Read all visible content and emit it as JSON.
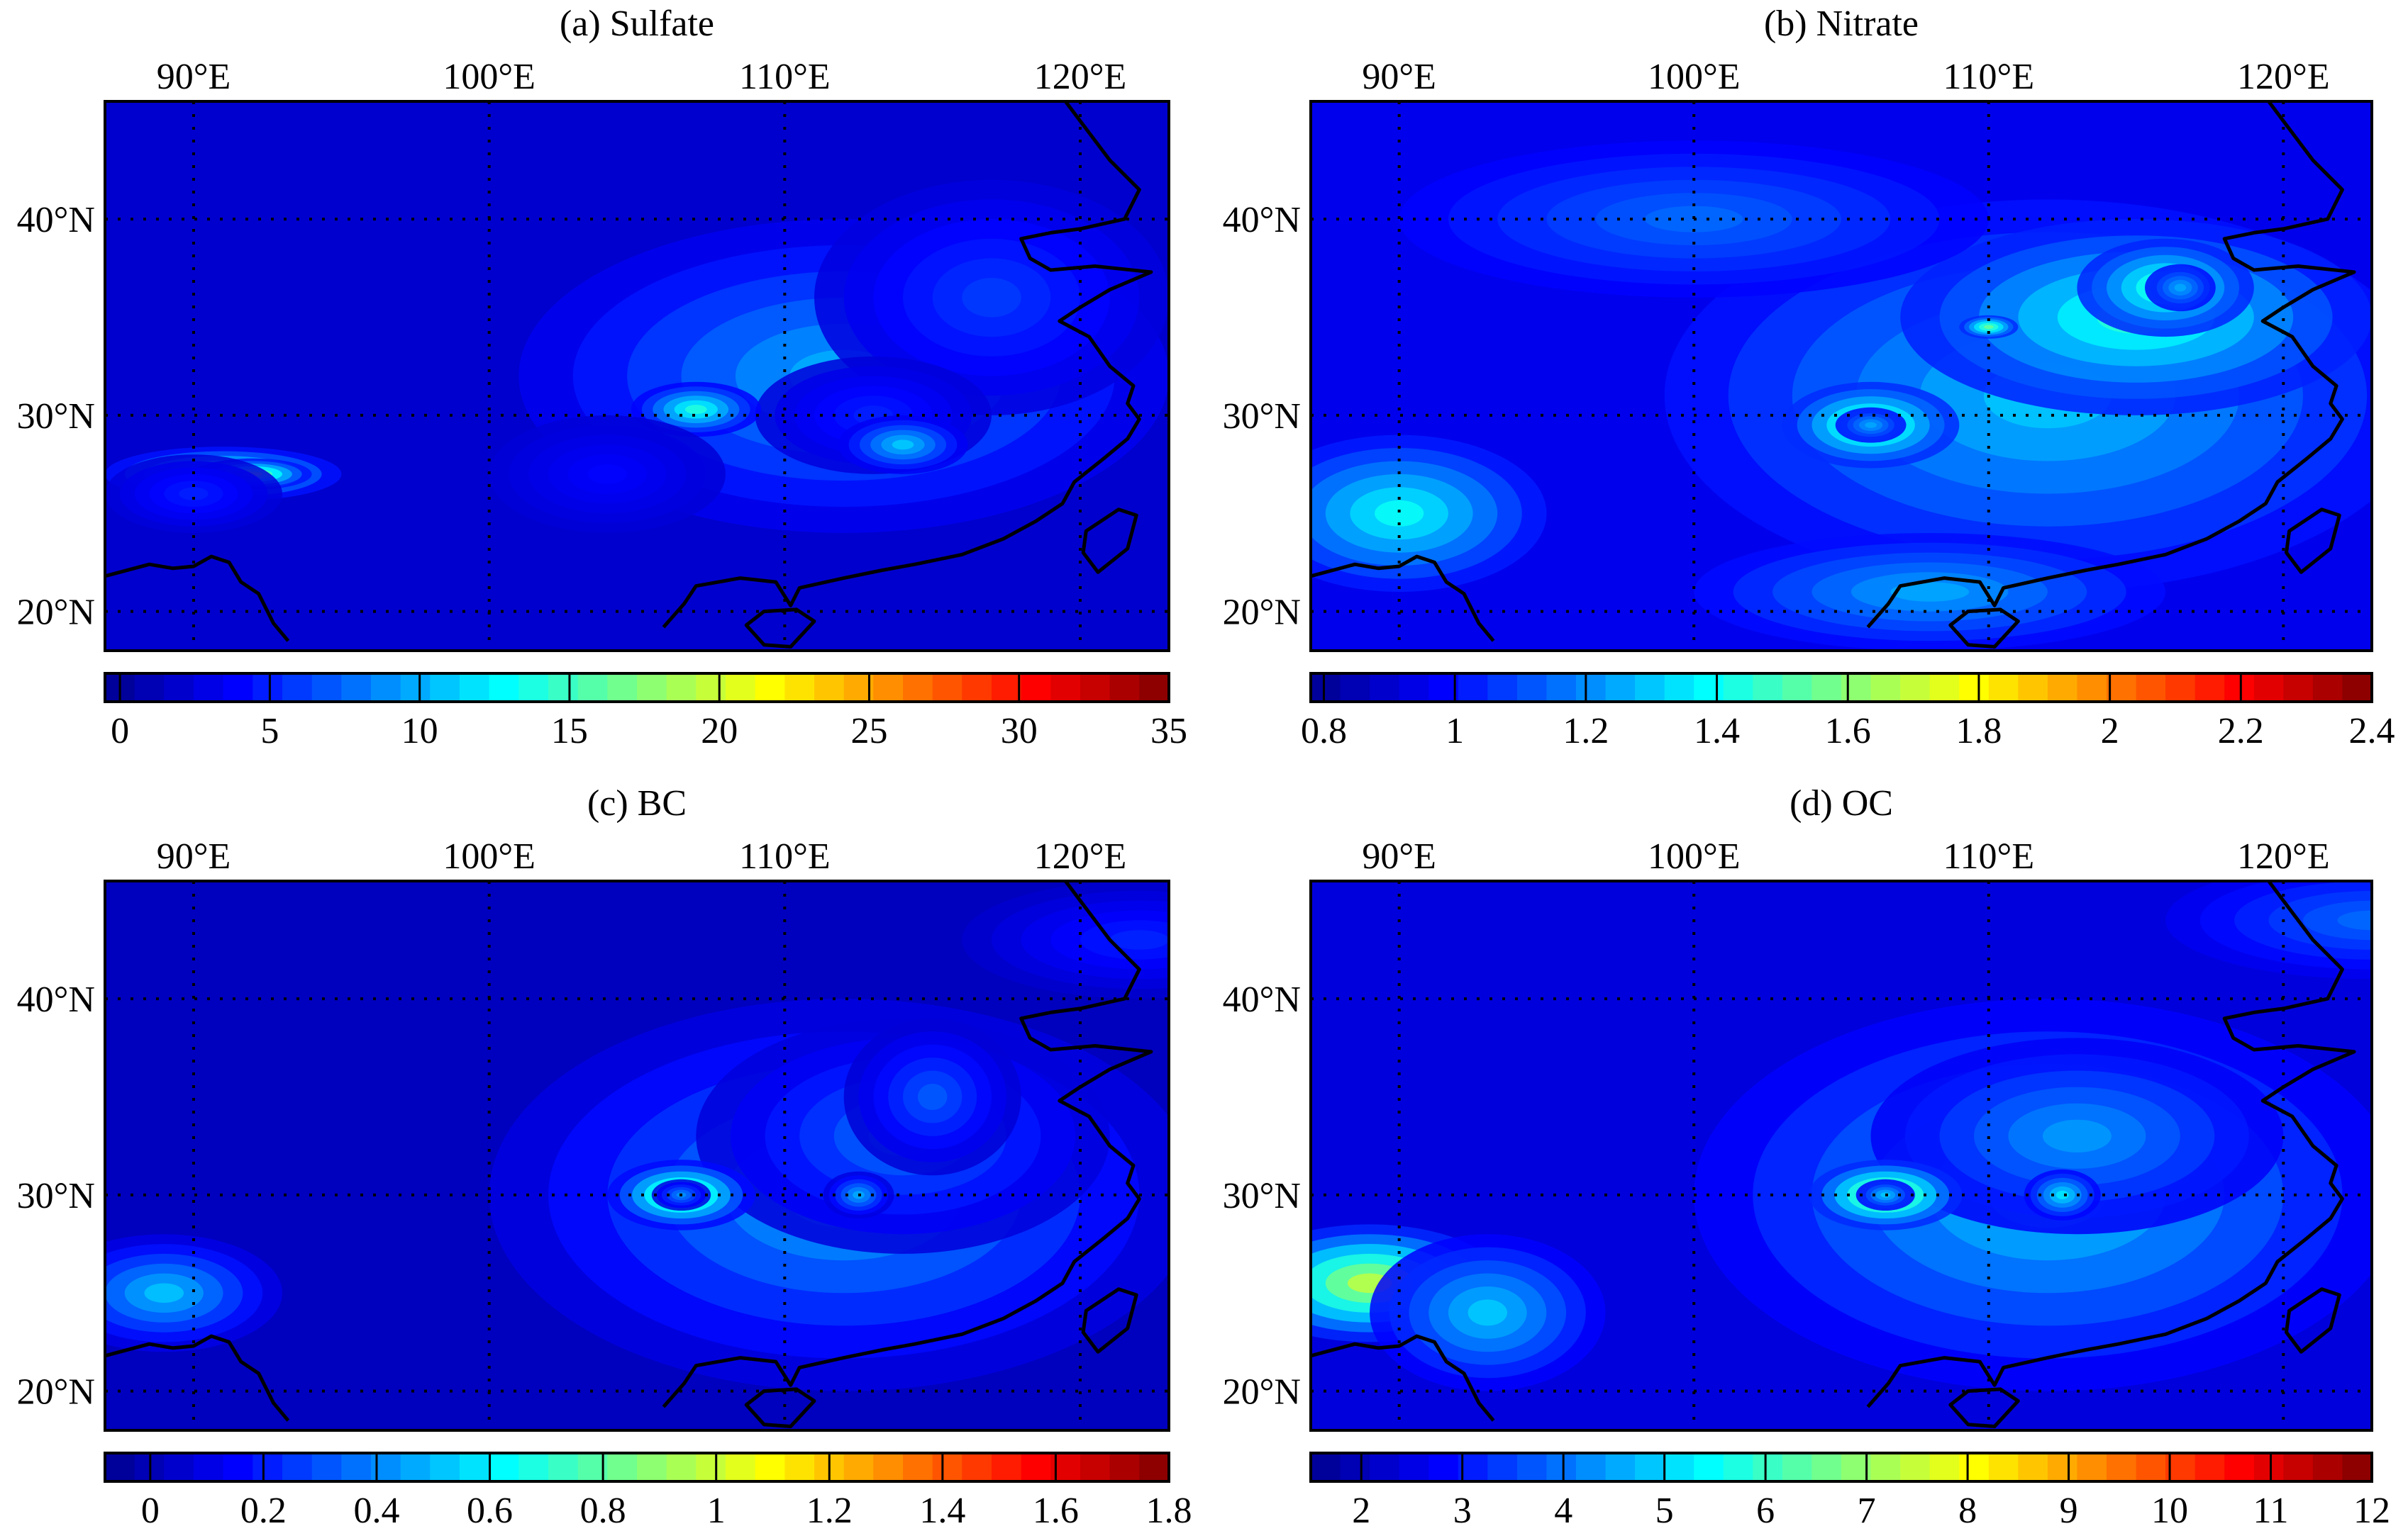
{
  "figure": {
    "colormap": [
      "#00008f",
      "#0000ff",
      "#00ffff",
      "#ffff00",
      "#ff0000",
      "#800000"
    ],
    "background": "#00008f",
    "coastline_color": "#000000"
  },
  "chart_data": [
    {
      "type": "heatmap",
      "title": "(a) Sulfate",
      "xlim": [
        87,
        123
      ],
      "ylim": [
        18,
        46
      ],
      "x_ticks": [
        {
          "v": 90,
          "label": "90°E"
        },
        {
          "v": 100,
          "label": "100°E"
        },
        {
          "v": 110,
          "label": "110°E"
        },
        {
          "v": 120,
          "label": "120°E"
        }
      ],
      "y_ticks": [
        {
          "v": 20,
          "label": "20°N"
        },
        {
          "v": 30,
          "label": "30°N"
        },
        {
          "v": 40,
          "label": "40°N"
        }
      ],
      "colorbar": {
        "min": -0.5,
        "max": 35,
        "ticks": [
          0,
          5,
          10,
          15,
          20,
          25,
          30,
          35
        ],
        "labels": [
          "0",
          "5",
          "10",
          "15",
          "20",
          "25",
          "30",
          "35"
        ]
      },
      "base": 2,
      "blobs": [
        {
          "lon": 112,
          "lat": 32,
          "rlon": 11,
          "rlat": 8,
          "v": 8
        },
        {
          "lon": 117,
          "lat": 36,
          "rlon": 6,
          "rlat": 6,
          "v": 4
        },
        {
          "lon": 113,
          "lat": 30,
          "rlon": 4,
          "rlat": 3,
          "v": 3
        },
        {
          "lon": 114,
          "lat": 28.5,
          "rlon": 2.2,
          "rlat": 1.5,
          "v": 9
        },
        {
          "lon": 107,
          "lat": 30.3,
          "rlon": 2.2,
          "rlat": 1.4,
          "v": 12
        },
        {
          "lon": 91,
          "lat": 27,
          "rlon": 4,
          "rlat": 1.4,
          "v": 15
        },
        {
          "lon": 92,
          "lat": 27,
          "rlon": 2,
          "rlat": 0.8,
          "v": 16
        },
        {
          "lon": 104,
          "lat": 27,
          "rlon": 4,
          "rlat": 3,
          "v": 2
        },
        {
          "lon": 90,
          "lat": 26,
          "rlon": 3,
          "rlat": 2,
          "v": 3
        }
      ]
    },
    {
      "type": "heatmap",
      "title": "(b) Nitrate",
      "xlim": [
        87,
        123
      ],
      "ylim": [
        18,
        46
      ],
      "x_ticks": [
        {
          "v": 90,
          "label": "90°E"
        },
        {
          "v": 100,
          "label": "100°E"
        },
        {
          "v": 110,
          "label": "110°E"
        },
        {
          "v": 120,
          "label": "120°E"
        }
      ],
      "y_ticks": [
        {
          "v": 20,
          "label": "20°N"
        },
        {
          "v": 30,
          "label": "30°N"
        },
        {
          "v": 40,
          "label": "40°N"
        }
      ],
      "colorbar": {
        "min": 0.78,
        "max": 2.4,
        "ticks": [
          0.8,
          1,
          1.2,
          1.4,
          1.6,
          1.8,
          2,
          2.2,
          2.4
        ],
        "labels": [
          "0.8",
          "1",
          "1.2",
          "1.4",
          "1.6",
          "1.8",
          "2",
          "2.2",
          "2.4"
        ]
      },
      "base": 0.95,
      "blobs": [
        {
          "lon": 112,
          "lat": 31,
          "rlon": 13,
          "rlat": 10,
          "v": 0.35
        },
        {
          "lon": 115,
          "lat": 35,
          "rlon": 8,
          "rlat": 5,
          "v": 0.5
        },
        {
          "lon": 116,
          "lat": 36.5,
          "rlon": 3,
          "rlat": 2.5,
          "v": 0.55
        },
        {
          "lon": 116.5,
          "lat": 36.5,
          "rlon": 1.2,
          "rlat": 1.2,
          "v": 0.3
        },
        {
          "lon": 106,
          "lat": 29.5,
          "rlon": 3,
          "rlat": 2.2,
          "v": 0.6
        },
        {
          "lon": 106,
          "lat": 29.5,
          "rlon": 1.2,
          "rlat": 0.9,
          "v": 0.3
        },
        {
          "lon": 110,
          "lat": 34.5,
          "rlon": 1,
          "rlat": 0.6,
          "v": 0.6
        },
        {
          "lon": 90,
          "lat": 25,
          "rlon": 5,
          "rlat": 4,
          "v": 0.45
        },
        {
          "lon": 100,
          "lat": 40,
          "rlon": 10,
          "rlat": 4,
          "v": 0.2
        },
        {
          "lon": 108,
          "lat": 21,
          "rlon": 8,
          "rlat": 3,
          "v": 0.3
        }
      ]
    },
    {
      "type": "heatmap",
      "title": "(c) BC",
      "xlim": [
        87,
        123
      ],
      "ylim": [
        18,
        46
      ],
      "x_ticks": [
        {
          "v": 90,
          "label": "90°E"
        },
        {
          "v": 100,
          "label": "100°E"
        },
        {
          "v": 110,
          "label": "110°E"
        },
        {
          "v": 120,
          "label": "120°E"
        }
      ],
      "y_ticks": [
        {
          "v": 20,
          "label": "20°N"
        },
        {
          "v": 30,
          "label": "30°N"
        },
        {
          "v": 40,
          "label": "40°N"
        }
      ],
      "colorbar": {
        "min": -0.08,
        "max": 1.8,
        "ticks": [
          0,
          0.2,
          0.4,
          0.6,
          0.8,
          1,
          1.2,
          1.4,
          1.6,
          1.8
        ],
        "labels": [
          "0",
          "0.2",
          "0.4",
          "0.6",
          "0.8",
          "1",
          "1.2",
          "1.4",
          "1.6",
          "1.8"
        ]
      },
      "base": 0.02,
      "blobs": [
        {
          "lon": 112,
          "lat": 30,
          "rlon": 12,
          "rlat": 10,
          "v": 0.45
        },
        {
          "lon": 114,
          "lat": 33,
          "rlon": 7,
          "rlat": 6,
          "v": 0.35
        },
        {
          "lon": 115,
          "lat": 35,
          "rlon": 3,
          "rlat": 4,
          "v": 0.3
        },
        {
          "lon": 106.5,
          "lat": 30,
          "rlon": 2.5,
          "rlat": 1.8,
          "v": 0.9
        },
        {
          "lon": 106.5,
          "lat": 30,
          "rlon": 1,
          "rlat": 0.8,
          "v": 0.4
        },
        {
          "lon": 112.5,
          "lat": 30,
          "rlon": 1.2,
          "rlat": 1.2,
          "v": 0.45
        },
        {
          "lon": 89,
          "lat": 25,
          "rlon": 4,
          "rlat": 3,
          "v": 0.5
        },
        {
          "lon": 122,
          "lat": 43,
          "rlon": 6,
          "rlat": 3,
          "v": 0.2
        }
      ]
    },
    {
      "type": "heatmap",
      "title": "(d) OC",
      "xlim": [
        87,
        123
      ],
      "ylim": [
        18,
        46
      ],
      "x_ticks": [
        {
          "v": 90,
          "label": "90°E"
        },
        {
          "v": 100,
          "label": "100°E"
        },
        {
          "v": 110,
          "label": "110°E"
        },
        {
          "v": 120,
          "label": "120°E"
        }
      ],
      "y_ticks": [
        {
          "v": 20,
          "label": "20°N"
        },
        {
          "v": 30,
          "label": "30°N"
        },
        {
          "v": 40,
          "label": "40°N"
        }
      ],
      "colorbar": {
        "min": 1.5,
        "max": 12,
        "ticks": [
          2,
          3,
          4,
          5,
          6,
          7,
          8,
          9,
          10,
          11,
          12
        ],
        "labels": [
          "2",
          "3",
          "4",
          "5",
          "6",
          "7",
          "8",
          "9",
          "10",
          "11",
          "12"
        ]
      },
      "base": 2.4,
      "blobs": [
        {
          "lon": 112,
          "lat": 30,
          "rlon": 12,
          "rlat": 10,
          "v": 2.5
        },
        {
          "lon": 113,
          "lat": 33,
          "rlon": 7,
          "rlat": 5,
          "v": 2
        },
        {
          "lon": 106.5,
          "lat": 30,
          "rlon": 2.6,
          "rlat": 1.8,
          "v": 5
        },
        {
          "lon": 106.5,
          "lat": 30,
          "rlon": 1,
          "rlat": 0.8,
          "v": 2.5
        },
        {
          "lon": 112.5,
          "lat": 30,
          "rlon": 1.3,
          "rlat": 1.3,
          "v": 2.8
        },
        {
          "lon": 89,
          "lat": 25.5,
          "rlon": 4.5,
          "rlat": 3,
          "v": 5
        },
        {
          "lon": 93,
          "lat": 24,
          "rlon": 4,
          "rlat": 4,
          "v": 2.5
        },
        {
          "lon": 123,
          "lat": 44,
          "rlon": 7,
          "rlat": 3,
          "v": 1.5
        }
      ]
    }
  ]
}
